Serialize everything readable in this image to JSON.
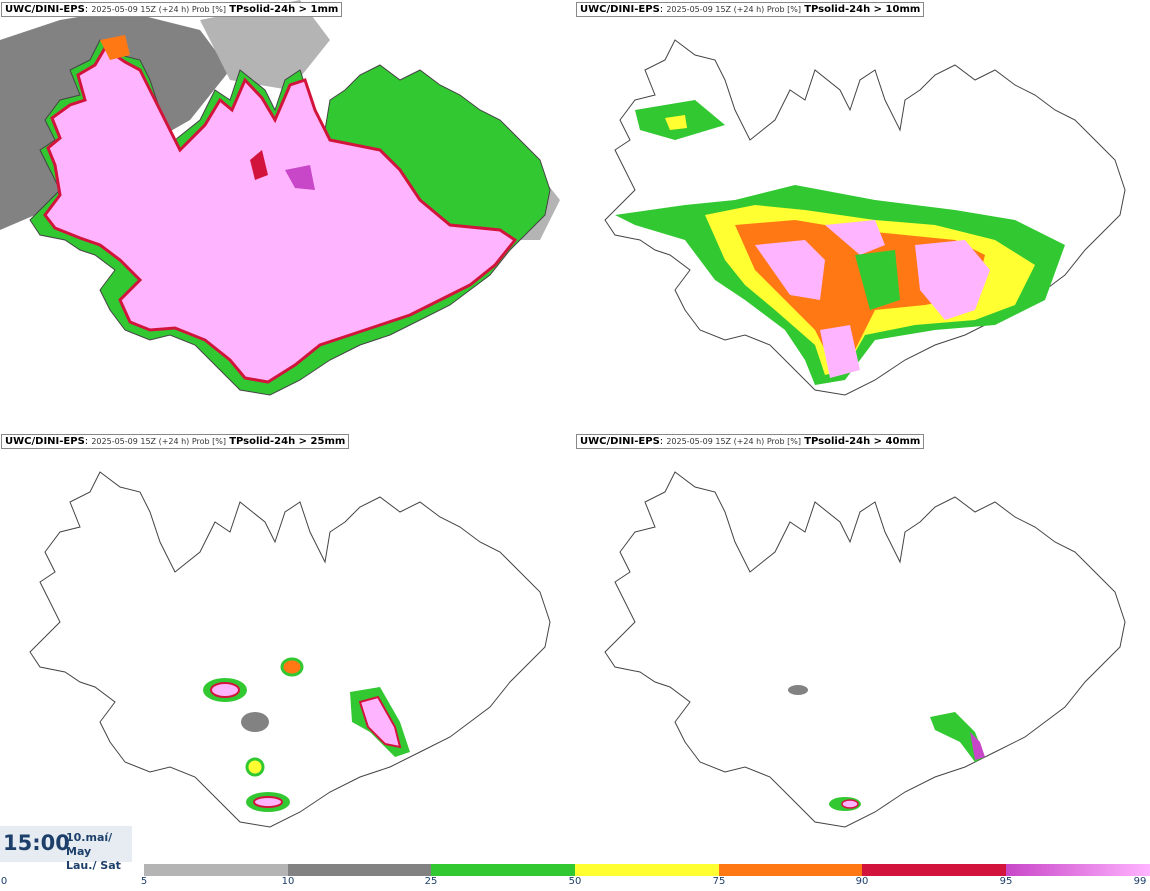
{
  "panels": [
    {
      "model": "UWC/DINI-EPS",
      "meta": "2025-05-09 15Z (+24 h) Prob [%]",
      "param": "TPsolid-24h > 1mm"
    },
    {
      "model": "UWC/DINI-EPS",
      "meta": "2025-05-09 15Z (+24 h) Prob [%]",
      "param": "TPsolid-24h > 10mm"
    },
    {
      "model": "UWC/DINI-EPS",
      "meta": "2025-05-09 15Z (+24 h) Prob [%]",
      "param": "TPsolid-24h > 25mm"
    },
    {
      "model": "UWC/DINI-EPS",
      "meta": "2025-05-09 15Z (+24 h) Prob [%]",
      "param": "TPsolid-24h > 40mm"
    }
  ],
  "valid_time": {
    "time": "15:00",
    "date_line1": "10.maí/ May",
    "date_line2": "Lau./ Sat"
  },
  "colorbar": {
    "ticks": [
      "0",
      "5",
      "10",
      "25",
      "50",
      "75",
      "90",
      "95",
      "99"
    ],
    "colors": [
      "#b4b4b4",
      "#828282",
      "#32c832",
      "#ffff32",
      "#ff7814",
      "#d2143c",
      "#c846c8",
      "#ffb4ff"
    ]
  }
}
